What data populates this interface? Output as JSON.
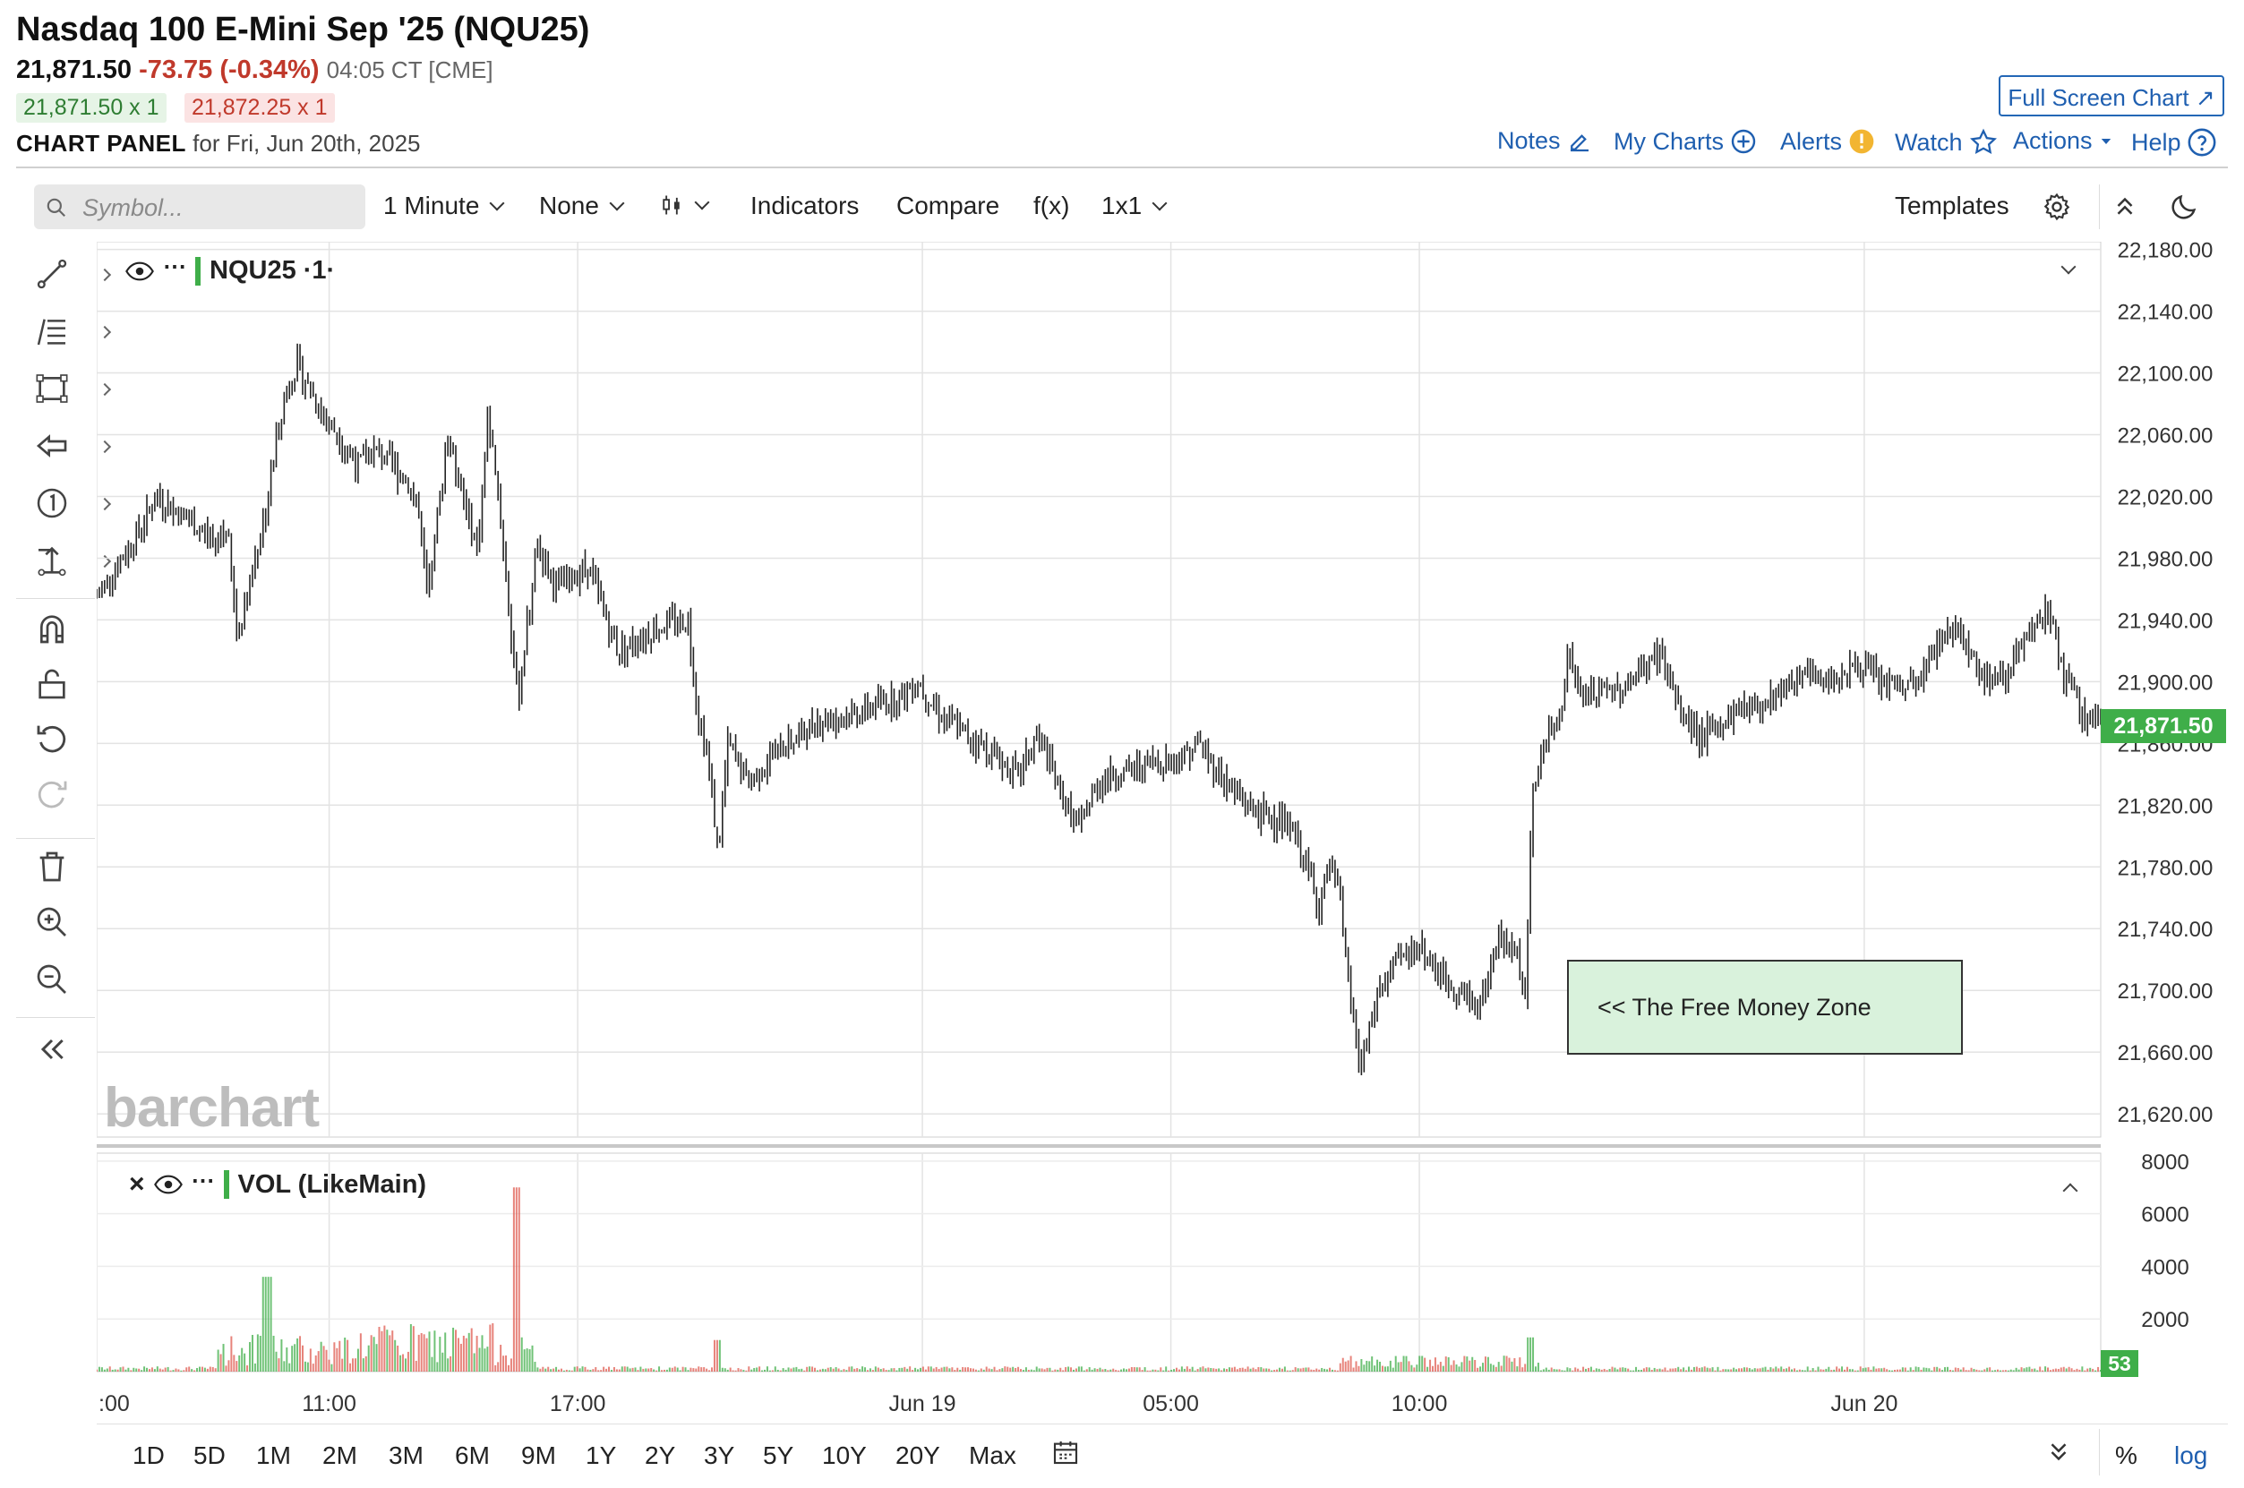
{
  "header": {
    "title": "Nasdaq 100 E-Mini Sep '25 (NQU25)",
    "last": "21,871.50",
    "change": "-73.75 (-0.34%)",
    "time": "04:05 CT [CME]",
    "bid": "21,871.50 x 1",
    "ask": "21,872.25 x 1",
    "panel_label": "CHART PANEL",
    "panel_date": "for Fri, Jun 20th, 2025",
    "full_screen_label": "Full Screen Chart",
    "links": {
      "notes": "Notes",
      "my_charts": "My Charts",
      "alerts": "Alerts",
      "watch": "Watch",
      "actions": "Actions",
      "help": "Help"
    }
  },
  "toolbar": {
    "search_placeholder": "Symbol...",
    "interval": "1 Minute",
    "aggregation": "None",
    "indicators": "Indicators",
    "compare": "Compare",
    "fx": "f(x)",
    "layout": "1x1",
    "templates": "Templates"
  },
  "chart": {
    "symbol_legend": "NQU25 ·1·",
    "volume_legend": "VOL (LikeMain)",
    "current_price": "21,871.50",
    "current_volume": "53",
    "annotation": "<< The Free Money Zone",
    "watermark": "barchart",
    "log_label": "log",
    "pct_label": "%"
  },
  "chart_data": {
    "type": "line",
    "title": "Nasdaq 100 E-Mini Sep '25 (NQU25)",
    "interval": "1 Minute",
    "y_ticks": [
      22180,
      22140,
      22100,
      22060,
      22020,
      21980,
      21940,
      21900,
      21860,
      21820,
      21780,
      21740,
      21700,
      21660,
      21620
    ],
    "y_tick_labels": [
      "22,180.00",
      "22,140.00",
      "22,100.00",
      "22,060.00",
      "22,020.00",
      "21,980.00",
      "21,940.00",
      "21,900.00",
      "21,860.00",
      "21,820.00",
      "21,780.00",
      "21,740.00",
      "21,700.00",
      "21,660.00",
      "21,620.00"
    ],
    "ylim": [
      21605,
      22185
    ],
    "x_ticks": [
      {
        "label": ":00",
        "t": 0
      },
      {
        "label": "11:00",
        "t": 0.116
      },
      {
        "label": "17:00",
        "t": 0.24
      },
      {
        "label": "Jun 19",
        "t": 0.412
      },
      {
        "label": "05:00",
        "t": 0.536
      },
      {
        "label": "10:00",
        "t": 0.66
      },
      {
        "label": "Jun 20",
        "t": 0.882
      }
    ],
    "price_series": [
      [
        0.0,
        21955
      ],
      [
        0.02,
        21995
      ],
      [
        0.03,
        22020
      ],
      [
        0.06,
        21990
      ],
      [
        0.065,
        22000
      ],
      [
        0.07,
        21930
      ],
      [
        0.085,
        22015
      ],
      [
        0.09,
        22060
      ],
      [
        0.095,
        22090
      ],
      [
        0.1,
        22105
      ],
      [
        0.11,
        22080
      ],
      [
        0.12,
        22060
      ],
      [
        0.13,
        22040
      ],
      [
        0.14,
        22050
      ],
      [
        0.155,
        22030
      ],
      [
        0.16,
        22015
      ],
      [
        0.165,
        21950
      ],
      [
        0.175,
        22060
      ],
      [
        0.19,
        21985
      ],
      [
        0.195,
        22070
      ],
      [
        0.2,
        22030
      ],
      [
        0.21,
        21885
      ],
      [
        0.22,
        21990
      ],
      [
        0.23,
        21960
      ],
      [
        0.245,
        21975
      ],
      [
        0.26,
        21920
      ],
      [
        0.28,
        21935
      ],
      [
        0.295,
        21940
      ],
      [
        0.3,
        21880
      ],
      [
        0.305,
        21850
      ],
      [
        0.31,
        21790
      ],
      [
        0.315,
        21860
      ],
      [
        0.325,
        21835
      ],
      [
        0.34,
        21855
      ],
      [
        0.36,
        21875
      ],
      [
        0.38,
        21880
      ],
      [
        0.4,
        21890
      ],
      [
        0.41,
        21900
      ],
      [
        0.42,
        21880
      ],
      [
        0.44,
        21860
      ],
      [
        0.46,
        21840
      ],
      [
        0.47,
        21865
      ],
      [
        0.48,
        21830
      ],
      [
        0.49,
        21805
      ],
      [
        0.5,
        21835
      ],
      [
        0.52,
        21845
      ],
      [
        0.54,
        21850
      ],
      [
        0.55,
        21860
      ],
      [
        0.56,
        21840
      ],
      [
        0.57,
        21825
      ],
      [
        0.58,
        21815
      ],
      [
        0.59,
        21810
      ],
      [
        0.6,
        21795
      ],
      [
        0.61,
        21755
      ],
      [
        0.615,
        21780
      ],
      [
        0.62,
        21760
      ],
      [
        0.625,
        21700
      ],
      [
        0.63,
        21650
      ],
      [
        0.64,
        21700
      ],
      [
        0.65,
        21720
      ],
      [
        0.66,
        21730
      ],
      [
        0.67,
        21710
      ],
      [
        0.68,
        21700
      ],
      [
        0.69,
        21690
      ],
      [
        0.7,
        21735
      ],
      [
        0.71,
        21720
      ],
      [
        0.713,
        21700
      ],
      [
        0.716,
        21820
      ],
      [
        0.72,
        21850
      ],
      [
        0.73,
        21880
      ],
      [
        0.735,
        21920
      ],
      [
        0.74,
        21890
      ],
      [
        0.76,
        21895
      ],
      [
        0.77,
        21905
      ],
      [
        0.78,
        21920
      ],
      [
        0.79,
        21880
      ],
      [
        0.8,
        21865
      ],
      [
        0.81,
        21870
      ],
      [
        0.82,
        21885
      ],
      [
        0.83,
        21885
      ],
      [
        0.84,
        21895
      ],
      [
        0.85,
        21905
      ],
      [
        0.86,
        21900
      ],
      [
        0.87,
        21905
      ],
      [
        0.88,
        21910
      ],
      [
        0.89,
        21900
      ],
      [
        0.9,
        21895
      ],
      [
        0.91,
        21900
      ],
      [
        0.92,
        21930
      ],
      [
        0.93,
        21935
      ],
      [
        0.94,
        21905
      ],
      [
        0.95,
        21900
      ],
      [
        0.96,
        21920
      ],
      [
        0.97,
        21940
      ],
      [
        0.975,
        21945
      ],
      [
        0.98,
        21910
      ],
      [
        0.99,
        21880
      ],
      [
        1.0,
        21871.5
      ]
    ],
    "volume": {
      "y_ticks": [
        8000,
        6000,
        4000,
        2000
      ],
      "ylim": [
        0,
        8300
      ],
      "last": 53
    }
  },
  "ranges": [
    "1D",
    "5D",
    "1M",
    "2M",
    "3M",
    "6M",
    "9M",
    "1Y",
    "2Y",
    "3Y",
    "5Y",
    "10Y",
    "20Y",
    "Max"
  ],
  "colors": {
    "up": "#3fae49",
    "down": "#e05a4f",
    "link": "#1f5fb0",
    "alert": "#f2b531",
    "annotation_fill": "#d9f2dc"
  }
}
